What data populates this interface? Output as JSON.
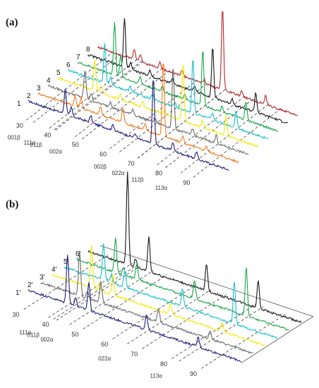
{
  "chart_data": [
    {
      "type": "line",
      "panel_label": "(a)",
      "x_ticks": [
        "30",
        "40",
        "50",
        "60",
        "70",
        "80",
        "90"
      ],
      "x_range": [
        25,
        97
      ],
      "series": [
        {
          "name": "1",
          "color": "#1f1d7a"
        },
        {
          "name": "2",
          "color": "#f07a22"
        },
        {
          "name": "3",
          "color": "#6a6a6a"
        },
        {
          "name": "4",
          "color": "#f2ea0c"
        },
        {
          "name": "5",
          "color": "#18c0cf"
        },
        {
          "name": "6",
          "color": "#1aa64a"
        },
        {
          "name": "7",
          "color": "#161616"
        },
        {
          "name": "8",
          "color": "#b4262c"
        }
      ],
      "peak_labels": [
        {
          "text": "001β",
          "x": 32.5
        },
        {
          "text": "111α",
          "x": 38.3
        },
        {
          "text": "011β",
          "x": 40.5
        },
        {
          "text": "002α",
          "x": 47.5
        },
        {
          "text": "002β",
          "x": 63.5
        },
        {
          "text": "022α",
          "x": 70.0
        },
        {
          "text": "112β",
          "x": 77.0
        },
        {
          "text": "113α",
          "x": 85.5
        }
      ],
      "peaks": [
        {
          "x": 38.3,
          "h": [
            35,
            14,
            40,
            45,
            55,
            75,
            70,
            15
          ]
        },
        {
          "x": 40.5,
          "h": [
            12,
            16,
            10,
            10,
            10,
            30,
            10,
            10
          ]
        },
        {
          "x": 47.5,
          "h": [
            10,
            12,
            8,
            8,
            8,
            10,
            8,
            8
          ]
        },
        {
          "x": 55.5,
          "h": [
            8,
            20,
            8,
            8,
            8,
            8,
            8,
            8
          ]
        },
        {
          "x": 63.5,
          "h": [
            6,
            8,
            6,
            6,
            6,
            6,
            8,
            6
          ]
        },
        {
          "x": 70.0,
          "h": [
            95,
            110,
            88,
            82,
            78,
            80,
            72,
            118
          ]
        },
        {
          "x": 77.0,
          "h": [
            12,
            10,
            10,
            10,
            8,
            8,
            8,
            8
          ]
        },
        {
          "x": 85.5,
          "h": [
            10,
            8,
            12,
            28,
            26,
            26,
            28,
            12
          ]
        }
      ]
    },
    {
      "type": "line",
      "panel_label": "(b)",
      "x_ticks": [
        "30",
        "40",
        "50",
        "60",
        "70",
        "80",
        "90"
      ],
      "x_range": [
        25,
        97
      ],
      "series": [
        {
          "name": "1'",
          "color": "#1f1d7a"
        },
        {
          "name": "2'",
          "color": "#6a6a6a"
        },
        {
          "name": "3'",
          "color": "#f2ea0c"
        },
        {
          "name": "4'",
          "color": "#18c0cf"
        },
        {
          "name": "5'",
          "color": "#1aa64a"
        },
        {
          "name": "6'",
          "color": "#161616"
        }
      ],
      "peak_labels": [
        {
          "text": "111α",
          "x": 38.3
        },
        {
          "text": "011β",
          "x": 41.0
        },
        {
          "text": "002α",
          "x": 45.5
        },
        {
          "text": "022α",
          "x": 65.0
        },
        {
          "text": "113α",
          "x": 82.5
        }
      ],
      "peaks": [
        {
          "x": 38.3,
          "h": [
            70,
            62,
            60,
            52,
            50,
            130
          ]
        },
        {
          "x": 41.0,
          "h": [
            12,
            10,
            10,
            12,
            12,
            12
          ]
        },
        {
          "x": 45.5,
          "h": [
            40,
            30,
            28,
            24,
            22,
            50
          ]
        },
        {
          "x": 65.0,
          "h": [
            22,
            18,
            16,
            24,
            26,
            40
          ]
        },
        {
          "x": 82.5,
          "h": [
            14,
            12,
            14,
            60,
            70,
            40
          ]
        }
      ]
    }
  ]
}
